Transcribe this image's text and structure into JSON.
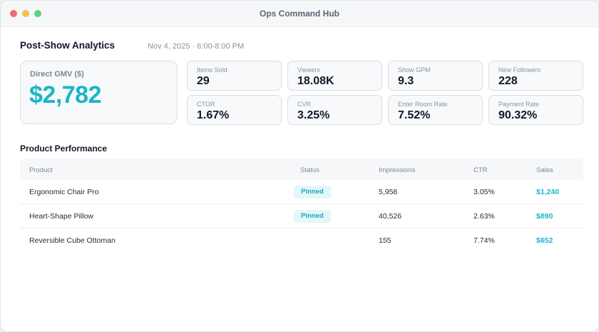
{
  "window": {
    "title": "Ops Command Hub",
    "dots": [
      "#f06a6a",
      "#f2c14e",
      "#5fd08a"
    ]
  },
  "header": {
    "title": "Post-Show Analytics",
    "date": "Nov 4, 2025 · 6:00-8:00 PM"
  },
  "gmv": {
    "label": "Direct GMV ($)",
    "value": "$2,782"
  },
  "metrics": [
    {
      "label": "Items Sold",
      "value": "29"
    },
    {
      "label": "Viewers",
      "value": "18.08K"
    },
    {
      "label": "Show GPM",
      "value": "9.3"
    },
    {
      "label": "New Followers",
      "value": "228"
    },
    {
      "label": "CTOR",
      "value": "1.67%"
    },
    {
      "label": "CVR",
      "value": "3.25%"
    },
    {
      "label": "Enter Room Rate",
      "value": "7.52%"
    },
    {
      "label": "Payment Rate",
      "value": "90.32%"
    }
  ],
  "products": {
    "title": "Product Performance",
    "columns": [
      "Product",
      "Status",
      "Impressions",
      "CTR",
      "Sales"
    ],
    "rows": [
      {
        "product": "Ergonomic Chair Pro",
        "status": "Pinned",
        "impressions": "5,958",
        "ctr": "3.05%",
        "sales": "$1,240"
      },
      {
        "product": "Heart-Shape Pillow",
        "status": "Pinned",
        "impressions": "40,526",
        "ctr": "2.63%",
        "sales": "$890"
      },
      {
        "product": "Reversible Cube Ottoman",
        "status": "",
        "impressions": "155",
        "ctr": "7.74%",
        "sales": "$652"
      }
    ]
  }
}
